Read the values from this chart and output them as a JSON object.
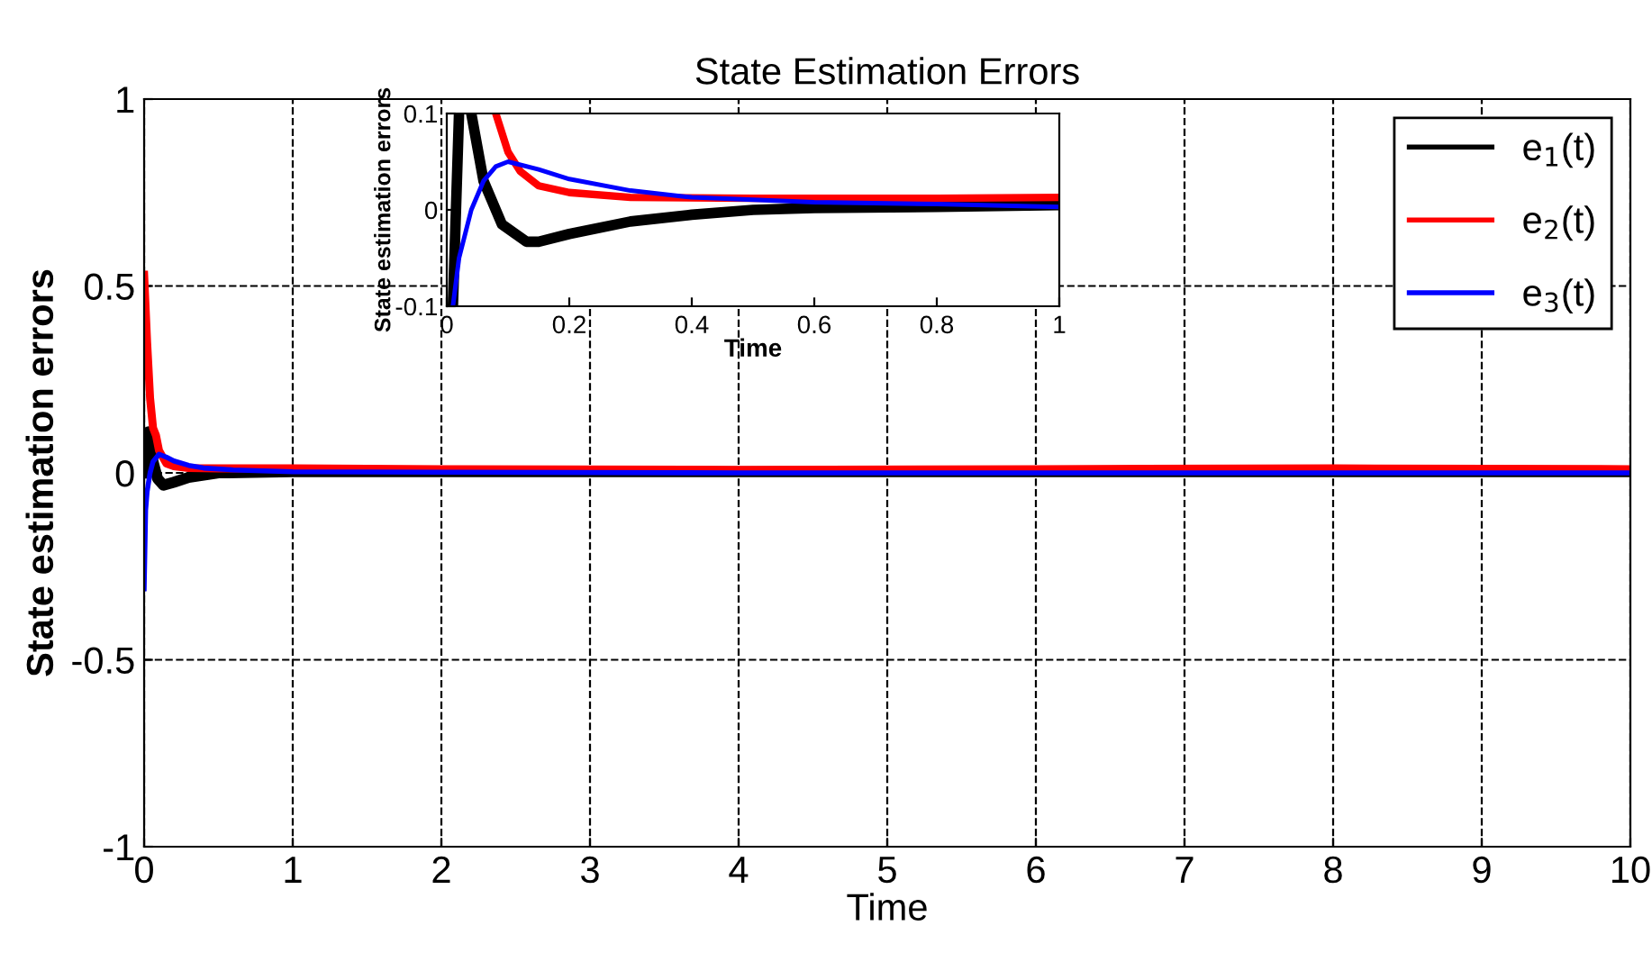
{
  "chart_data": [
    {
      "type": "line",
      "title": "State Estimation Errors",
      "xlabel": "Time",
      "ylabel": "State estimation errors",
      "xlim": [
        0,
        10
      ],
      "ylim": [
        -1,
        1
      ],
      "xticks": [
        0,
        1,
        2,
        3,
        4,
        5,
        6,
        7,
        8,
        9,
        10
      ],
      "yticks": [
        -1,
        -0.5,
        0,
        0.5,
        1
      ],
      "grid": true,
      "legend": "top right",
      "line_style": "solid",
      "marker": "none",
      "series": [
        {
          "name": "e$_{1}$(t)",
          "color": "#000000",
          "x": [
            0,
            0.01,
            0.02,
            0.03,
            0.06,
            0.09,
            0.13,
            0.2,
            0.3,
            0.5,
            1,
            2,
            4,
            6,
            8,
            10
          ],
          "values": [
            0,
            0.05,
            0.1,
            0.11,
            0.03,
            -0.015,
            -0.033,
            -0.025,
            -0.012,
            0,
            0.003,
            0.003,
            0.003,
            0.003,
            0.003,
            0.003
          ]
        },
        {
          "name": "e$_{2}$(t)",
          "color": "#ff0000",
          "x": [
            0,
            0.02,
            0.04,
            0.06,
            0.08,
            0.1,
            0.15,
            0.2,
            0.3,
            0.5,
            1,
            2,
            4,
            6,
            8,
            10
          ],
          "values": [
            0.53,
            0.35,
            0.2,
            0.12,
            0.1,
            0.06,
            0.025,
            0.018,
            0.013,
            0.012,
            0.012,
            0.01,
            0.008,
            0.01,
            0.012,
            0.01
          ]
        },
        {
          "name": "e$_{3}$(t)",
          "color": "#0000ff",
          "x": [
            0,
            0.01,
            0.02,
            0.04,
            0.06,
            0.1,
            0.15,
            0.2,
            0.3,
            0.4,
            0.6,
            1,
            2,
            4,
            6,
            8,
            10
          ],
          "values": [
            -0.31,
            -0.1,
            -0.05,
            0,
            0.03,
            0.05,
            0.042,
            0.032,
            0.02,
            0.013,
            0.008,
            0.003,
            0.002,
            0,
            0,
            0,
            0
          ]
        }
      ]
    },
    {
      "type": "line",
      "xlabel": "Time",
      "ylabel": "State estimation errors",
      "xlim": [
        0,
        1
      ],
      "ylim": [
        -0.1,
        0.1
      ],
      "xticks": [
        0,
        0.2,
        0.4,
        0.6,
        0.8,
        1
      ],
      "yticks": [
        -0.1,
        0,
        0.1
      ],
      "line_style": "solid",
      "marker": "none",
      "series": [
        {
          "color": "#000000",
          "x": [
            0.01,
            0.02,
            0.03,
            0.04,
            0.06,
            0.09,
            0.13,
            0.15,
            0.2,
            0.3,
            0.4,
            0.5,
            0.6,
            0.8,
            1
          ],
          "values": [
            -0.1,
            0.1,
            null,
            0.1,
            0.03,
            -0.015,
            -0.033,
            -0.033,
            -0.025,
            -0.012,
            -0.005,
            0,
            0.002,
            0.003,
            0.005
          ]
        },
        {
          "color": "#ff0000",
          "x": [
            0.08,
            0.1,
            0.12,
            0.15,
            0.2,
            0.3,
            0.5,
            0.8,
            1
          ],
          "values": [
            0.1,
            0.06,
            0.04,
            0.025,
            0.018,
            0.013,
            0.012,
            0.012,
            0.013
          ]
        },
        {
          "color": "#0000ff",
          "x": [
            0.01,
            0.02,
            0.04,
            0.06,
            0.08,
            0.1,
            0.15,
            0.2,
            0.3,
            0.4,
            0.6,
            0.8,
            1
          ],
          "values": [
            -0.1,
            -0.05,
            0,
            0.03,
            0.045,
            0.05,
            0.042,
            0.032,
            0.02,
            0.013,
            0.008,
            0.006,
            0.003
          ]
        }
      ]
    }
  ]
}
